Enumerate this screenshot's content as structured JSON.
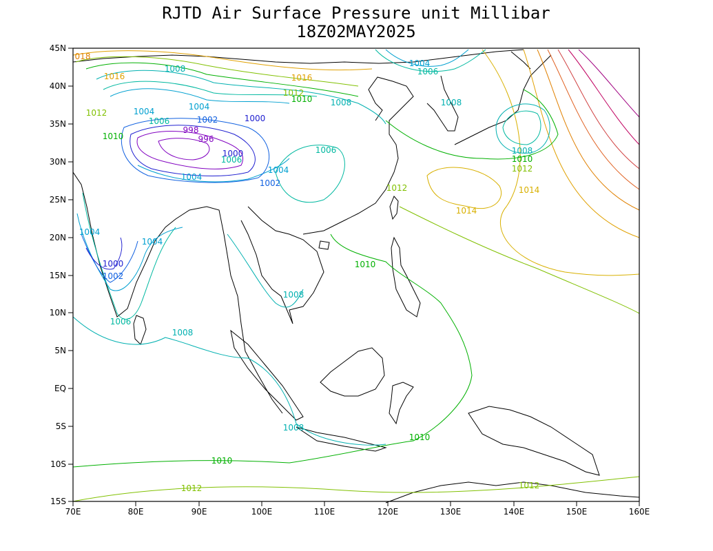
{
  "title": {
    "line1": "RJTD Air Surface Pressure unit Millibar",
    "line2": "18Z02MAY2025"
  },
  "axes": {
    "lon_labels": [
      "70E",
      "80E",
      "90E",
      "100E",
      "110E",
      "120E",
      "130E",
      "140E",
      "150E",
      "160E"
    ],
    "lat_labels": [
      "45N",
      "40N",
      "35N",
      "30N",
      "25N",
      "20N",
      "15N",
      "10N",
      "5N",
      "EQ",
      "5S",
      "10S",
      "15S"
    ]
  },
  "level_colors": {
    "996": "#8000c0",
    "998": "#8000c0",
    "1000": "#2020d0",
    "1002": "#1060e0",
    "1004": "#00a0d0",
    "1006": "#00b8a0",
    "1008": "#00b0b0",
    "1010": "#00b000",
    "1012": "#80c000",
    "1014": "#d8b000",
    "1016": "#e0a000",
    "1018": "#e08000",
    "1020": "#e06020",
    "1022": "#d04040",
    "1024": "#c00060",
    "1026": "#a00080"
  },
  "contour_labels": [
    {
      "text": "018",
      "color": "#e08000"
    },
    {
      "text": "1016",
      "color": "#e0a000"
    },
    {
      "text": "1008",
      "color": "#00b0b0"
    },
    {
      "text": "1016",
      "color": "#e0a000"
    },
    {
      "text": "1012",
      "color": "#80c000"
    },
    {
      "text": "1010",
      "color": "#00b000"
    },
    {
      "text": "1004",
      "color": "#00a0d0"
    },
    {
      "text": "1006",
      "color": "#00b8a0"
    },
    {
      "text": "1008",
      "color": "#00b0b0"
    },
    {
      "text": "1004",
      "color": "#00a0d0"
    },
    {
      "text": "1004",
      "color": "#00a0d0"
    },
    {
      "text": "1006",
      "color": "#00b8a0"
    },
    {
      "text": "1002",
      "color": "#1060e0"
    },
    {
      "text": "1000",
      "color": "#2020d0"
    },
    {
      "text": "1008",
      "color": "#00b0b0"
    },
    {
      "text": "1012",
      "color": "#80c000"
    },
    {
      "text": "998",
      "color": "#8000c0"
    },
    {
      "text": "996",
      "color": "#8000c0"
    },
    {
      "text": "1010",
      "color": "#00b000"
    },
    {
      "text": "1006",
      "color": "#00b8a0"
    },
    {
      "text": "1000",
      "color": "#2020d0"
    },
    {
      "text": "1004",
      "color": "#00a0d0"
    },
    {
      "text": "1004",
      "color": "#00a0d0"
    },
    {
      "text": "1002",
      "color": "#1060e0"
    },
    {
      "text": "1012",
      "color": "#80c000"
    },
    {
      "text": "1006",
      "color": "#00b8a0"
    },
    {
      "text": "1008",
      "color": "#00b0b0"
    },
    {
      "text": "1010",
      "color": "#00b000"
    },
    {
      "text": "1012",
      "color": "#80c000"
    },
    {
      "text": "1014",
      "color": "#d8b000"
    },
    {
      "text": "1014",
      "color": "#d8b000"
    },
    {
      "text": "1004",
      "color": "#00a0d0"
    },
    {
      "text": "1004",
      "color": "#00a0d0"
    },
    {
      "text": "1000",
      "color": "#2020d0"
    },
    {
      "text": "1002",
      "color": "#1060e0"
    },
    {
      "text": "1010",
      "color": "#00b000"
    },
    {
      "text": "1008",
      "color": "#00b0b0"
    },
    {
      "text": "1006",
      "color": "#00b8a0"
    },
    {
      "text": "1008",
      "color": "#00b0b0"
    },
    {
      "text": "1008",
      "color": "#00b0b0"
    },
    {
      "text": "1010",
      "color": "#00b000"
    },
    {
      "text": "1010",
      "color": "#00b000"
    },
    {
      "text": "1012",
      "color": "#80c000"
    },
    {
      "text": "1012",
      "color": "#80c000"
    }
  ]
}
